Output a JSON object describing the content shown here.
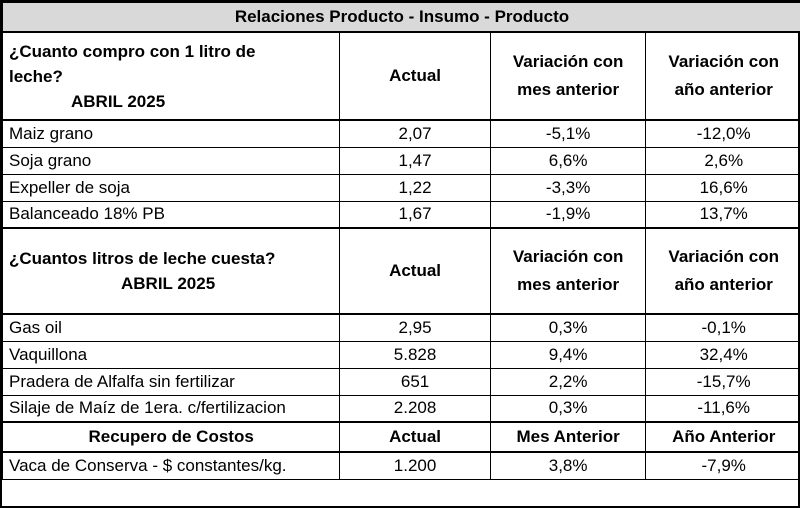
{
  "title": "Relaciones Producto - Insumo - Producto",
  "section1": {
    "question_line1": "¿Cuanto compro con 1 litro de",
    "question_line2": "leche?",
    "period": "ABRIL 2025",
    "col_actual": "Actual",
    "col_var_mes": "Variación con mes anterior",
    "col_var_anio": "Variación con año anterior",
    "rows": [
      {
        "label": "Maiz grano",
        "actual": "2,07",
        "var_mes": "-5,1%",
        "var_anio": "-12,0%"
      },
      {
        "label": "Soja grano",
        "actual": "1,47",
        "var_mes": "6,6%",
        "var_anio": "2,6%"
      },
      {
        "label": "Expeller de soja",
        "actual": "1,22",
        "var_mes": "-3,3%",
        "var_anio": "16,6%"
      },
      {
        "label": "Balanceado 18% PB",
        "actual": "1,67",
        "var_mes": "-1,9%",
        "var_anio": "13,7%"
      }
    ]
  },
  "section2": {
    "question": "¿Cuantos litros de leche cuesta?",
    "period": "ABRIL 2025",
    "col_actual": "Actual",
    "col_var_mes": "Variación con mes anterior",
    "col_var_anio": "Variación con año anterior",
    "rows": [
      {
        "label": "Gas oil",
        "actual": "2,95",
        "var_mes": "0,3%",
        "var_anio": "-0,1%"
      },
      {
        "label": "Vaquillona",
        "actual": "5.828",
        "var_mes": "9,4%",
        "var_anio": "32,4%"
      },
      {
        "label": "Pradera de Alfalfa sin fertilizar",
        "actual": "651",
        "var_mes": "2,2%",
        "var_anio": "-15,7%"
      },
      {
        "label": "Silaje de Maíz de 1era. c/fertilizacion",
        "actual": "2.208",
        "var_mes": "0,3%",
        "var_anio": "-11,6%"
      }
    ]
  },
  "section3": {
    "header_label": "Recupero de Costos",
    "col_actual": "Actual",
    "col_mes": "Mes Anterior",
    "col_anio": "Año Anterior",
    "rows": [
      {
        "label": "Vaca de Conserva - $ constantes/kg.",
        "actual": "1.200",
        "var_mes": "3,8%",
        "var_anio": "-7,9%"
      }
    ]
  }
}
